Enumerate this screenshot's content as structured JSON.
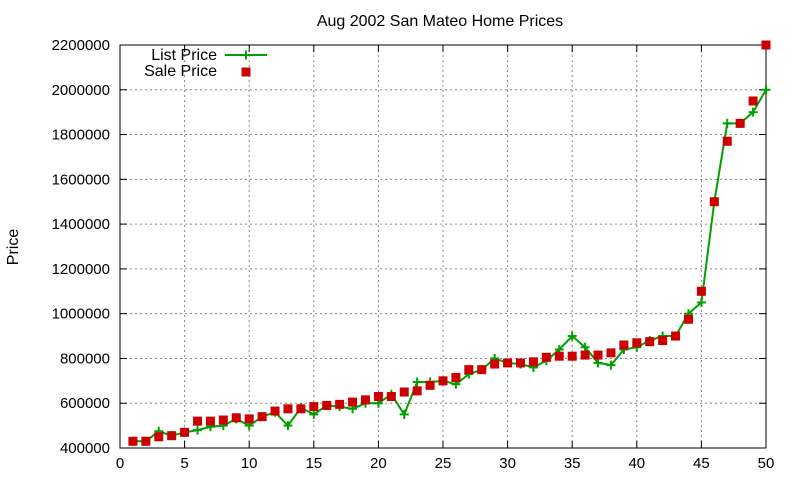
{
  "chart_data": {
    "type": "line",
    "title": "Aug 2002 San Mateo Home Prices",
    "xlabel": "",
    "ylabel": "Price",
    "xlim": [
      0,
      50
    ],
    "ylim": [
      400000,
      2200000
    ],
    "xticks": [
      0,
      5,
      10,
      15,
      20,
      25,
      30,
      35,
      40,
      45,
      50
    ],
    "yticks": [
      400000,
      600000,
      800000,
      1000000,
      1200000,
      1400000,
      1600000,
      1800000,
      2000000,
      2200000
    ],
    "grid": true,
    "legend": "top-left",
    "series": [
      {
        "name": "List Price",
        "style": "lines+points",
        "marker": "plus",
        "color": "#00a000",
        "x": [
          1,
          2,
          3,
          4,
          5,
          6,
          7,
          8,
          9,
          10,
          11,
          12,
          13,
          14,
          15,
          16,
          17,
          18,
          19,
          20,
          21,
          22,
          23,
          24,
          25,
          26,
          27,
          28,
          29,
          30,
          31,
          32,
          33,
          34,
          35,
          36,
          37,
          38,
          39,
          40,
          41,
          42,
          43,
          44,
          45,
          46,
          47,
          48,
          49,
          50
        ],
        "y": [
          430000,
          430000,
          475000,
          455000,
          470000,
          480000,
          495000,
          500000,
          530000,
          500000,
          540000,
          560000,
          500000,
          580000,
          550000,
          590000,
          585000,
          575000,
          600000,
          600000,
          640000,
          550000,
          695000,
          695000,
          700000,
          685000,
          730000,
          750000,
          800000,
          780000,
          775000,
          760000,
          790000,
          840000,
          900000,
          850000,
          780000,
          770000,
          840000,
          850000,
          880000,
          900000,
          900000,
          1000000,
          1050000,
          1500000,
          1850000,
          1850000,
          1900000,
          2000000
        ]
      },
      {
        "name": "Sale Price",
        "style": "points",
        "marker": "square",
        "color": "#cc0000",
        "x": [
          1,
          2,
          3,
          4,
          5,
          6,
          7,
          8,
          9,
          10,
          11,
          12,
          13,
          14,
          15,
          16,
          17,
          18,
          19,
          20,
          21,
          22,
          23,
          24,
          25,
          26,
          27,
          28,
          29,
          30,
          31,
          32,
          33,
          34,
          35,
          36,
          37,
          38,
          39,
          40,
          41,
          42,
          43,
          44,
          45,
          46,
          47,
          48,
          49,
          50
        ],
        "y": [
          430000,
          430000,
          450000,
          455000,
          470000,
          520000,
          520000,
          525000,
          535000,
          530000,
          540000,
          565000,
          575000,
          575000,
          585000,
          590000,
          595000,
          605000,
          615000,
          630000,
          630000,
          650000,
          655000,
          680000,
          700000,
          715000,
          750000,
          750000,
          775000,
          780000,
          780000,
          785000,
          805000,
          810000,
          810000,
          815000,
          815000,
          825000,
          860000,
          870000,
          875000,
          880000,
          900000,
          975000,
          1100000,
          1500000,
          1770000,
          1850000,
          1950000,
          2200000
        ]
      }
    ]
  }
}
